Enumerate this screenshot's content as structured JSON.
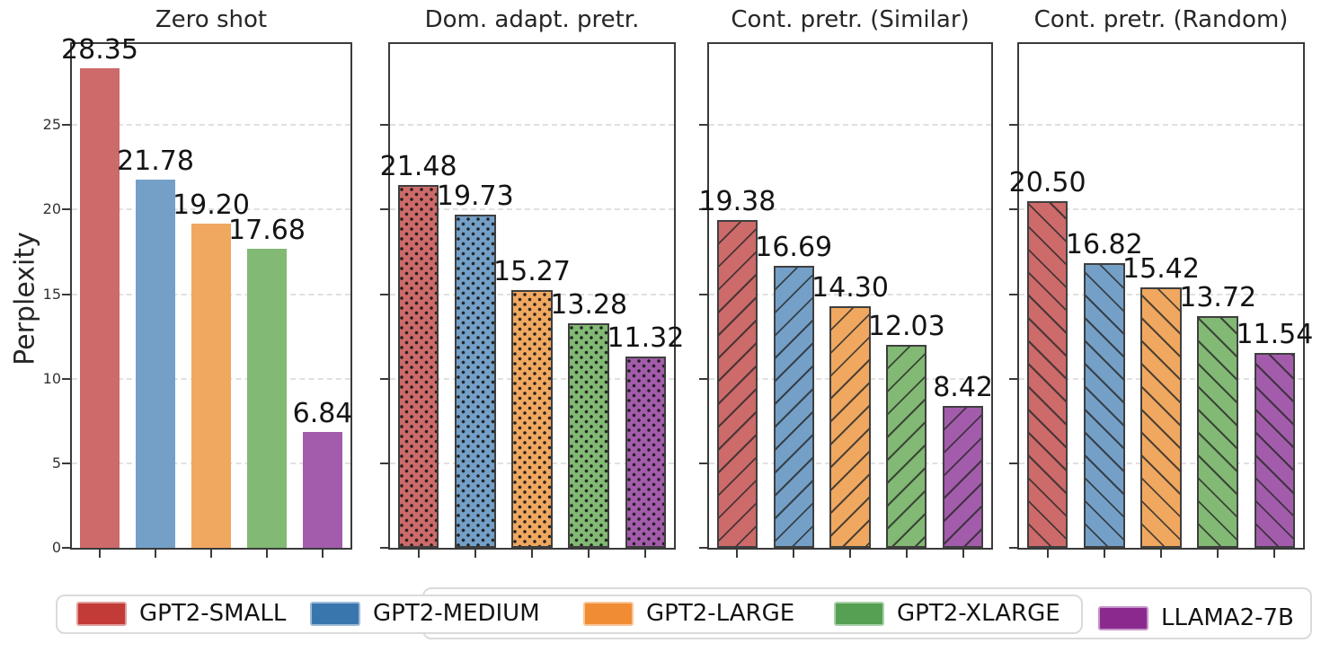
{
  "chart_data": {
    "type": "bar",
    "ylabel": "Perplexity",
    "ylim": [
      0,
      29.8
    ],
    "yticks": [
      0,
      5,
      10,
      15,
      20,
      25
    ],
    "grid": "horizontal dashed gridlines at yticks",
    "legend_position": "bottom",
    "models": [
      {
        "label": "GPT2-SMALL",
        "bar_color": "#cd6a6a",
        "legend_color": "#c23b36"
      },
      {
        "label": "GPT2-MEDIUM",
        "bar_color": "#74a0c8",
        "legend_color": "#3a76ae"
      },
      {
        "label": "GPT2-LARGE",
        "bar_color": "#f0a860",
        "legend_color": "#f08c33"
      },
      {
        "label": "GPT2-XLARGE",
        "bar_color": "#82b974",
        "legend_color": "#55a053"
      },
      {
        "label": "LLAMA2-7B",
        "bar_color": "#a35cab",
        "legend_color": "#8b2a8e"
      }
    ],
    "panels": [
      {
        "title": "Zero shot",
        "hatch": "none",
        "values": [
          28.35,
          21.78,
          19.2,
          17.68,
          6.84
        ]
      },
      {
        "title": "Dom. adapt. pretr.",
        "hatch": "dots",
        "values": [
          21.48,
          19.73,
          15.27,
          13.28,
          11.32
        ]
      },
      {
        "title": "Cont. pretr. (Similar)",
        "hatch": "forward-diagonal",
        "values": [
          19.38,
          16.69,
          14.3,
          12.03,
          8.42
        ]
      },
      {
        "title": "Cont. pretr. (Random)",
        "hatch": "back-diagonal",
        "values": [
          20.5,
          16.82,
          15.42,
          13.72,
          11.54
        ]
      }
    ],
    "value_label_decimals": 2
  }
}
